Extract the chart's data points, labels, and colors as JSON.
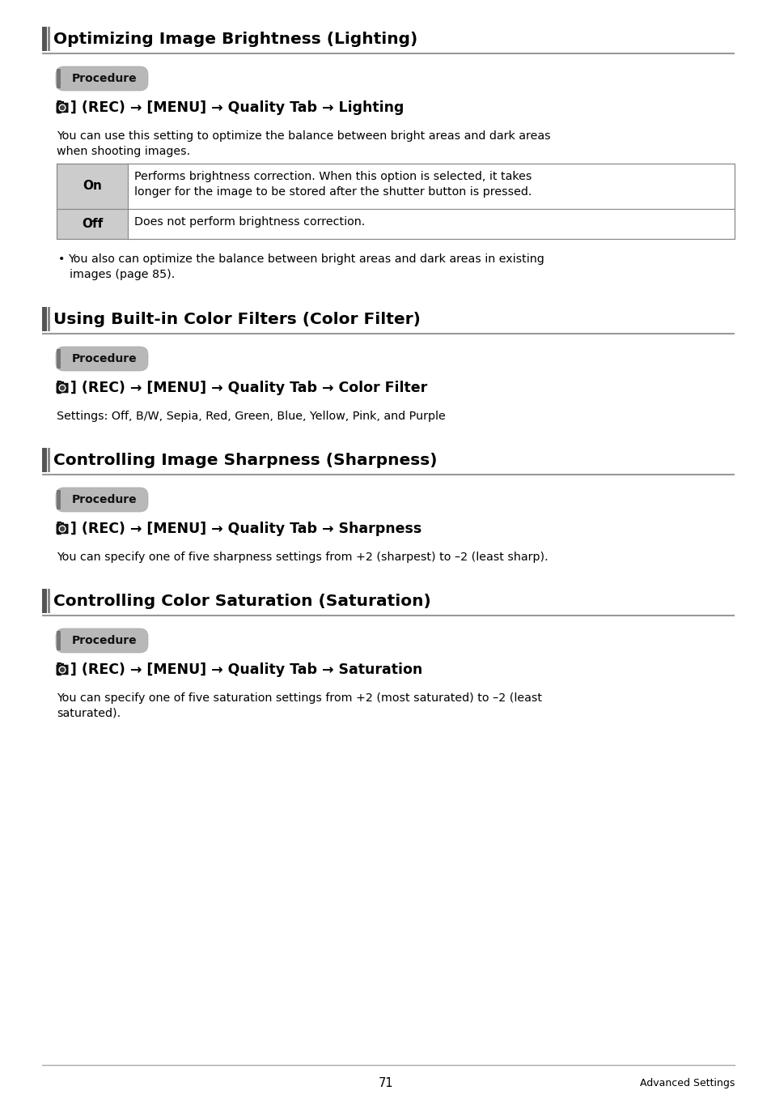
{
  "page_bg": "#ffffff",
  "page_number": "71",
  "footer_right": "Advanced Settings",
  "sections": [
    {
      "title": "Optimizing Image Brightness (Lighting)",
      "procedure_label": "Procedure",
      "nav_suffix": " (REC) → [MENU] → Quality Tab → Lighting",
      "body_text": "You can use this setting to optimize the balance between bright areas and dark areas\nwhen shooting images.",
      "table": [
        {
          "key": "On",
          "value": "Performs brightness correction. When this option is selected, it takes\nlonger for the image to be stored after the shutter button is pressed."
        },
        {
          "key": "Off",
          "value": "Does not perform brightness correction."
        }
      ],
      "bullets": [
        "You also can optimize the balance between bright areas and dark areas in existing\nimages (page 85)."
      ]
    },
    {
      "title": "Using Built-in Color Filters (Color Filter)",
      "procedure_label": "Procedure",
      "nav_suffix": " (REC) → [MENU] → Quality Tab → Color Filter",
      "body_text": "Settings: Off, B/W, Sepia, Red, Green, Blue, Yellow, Pink, and Purple",
      "table": null,
      "bullets": []
    },
    {
      "title": "Controlling Image Sharpness (Sharpness)",
      "procedure_label": "Procedure",
      "nav_suffix": " (REC) → [MENU] → Quality Tab → Sharpness",
      "body_text": "You can specify one of five sharpness settings from +2 (sharpest) to –2 (least sharp).",
      "table": null,
      "bullets": []
    },
    {
      "title": "Controlling Color Saturation (Saturation)",
      "procedure_label": "Procedure",
      "nav_suffix": " (REC) → [MENU] → Quality Tab → Saturation",
      "body_text": "You can specify one of five saturation settings from +2 (most saturated) to –2 (least\nsaturated).",
      "table": null,
      "bullets": []
    }
  ]
}
